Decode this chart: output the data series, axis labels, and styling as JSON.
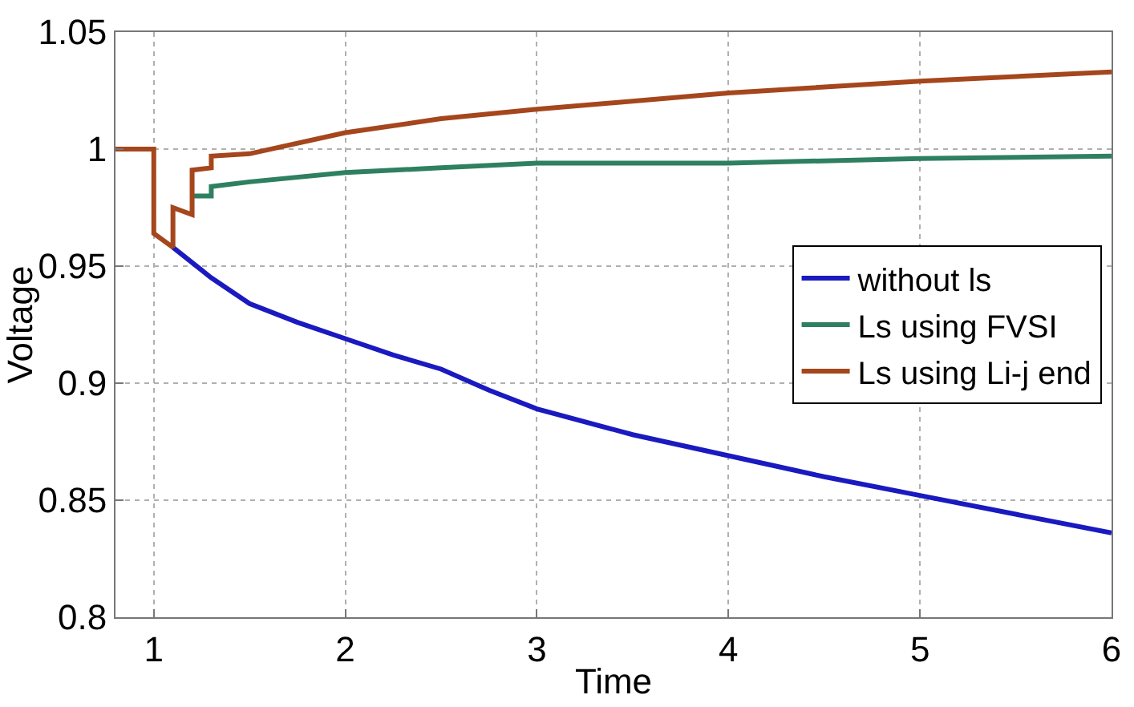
{
  "chart_data": {
    "type": "line",
    "xlabel": "Time",
    "ylabel": "Voltage",
    "xlim": [
      0.8,
      6
    ],
    "xticks": [
      1,
      2,
      3,
      4,
      5,
      6
    ],
    "ylim": [
      0.8,
      1.05
    ],
    "yticks": [
      0.8,
      0.85,
      0.9,
      0.95,
      1,
      1.05
    ],
    "grid": true,
    "legend": "right",
    "line_style": "solid",
    "marker": "none",
    "series": [
      {
        "name": "without ls",
        "color": "#1a1ac0",
        "x": [
          1.1,
          1.3,
          1.5,
          1.75,
          2,
          2.25,
          2.5,
          2.75,
          3,
          3.5,
          4,
          4.5,
          5,
          5.5,
          6
        ],
        "values": [
          0.958,
          0.945,
          0.934,
          0.926,
          0.919,
          0.912,
          0.906,
          0.897,
          0.889,
          0.878,
          0.869,
          0.86,
          0.852,
          0.844,
          0.836
        ]
      },
      {
        "name": "Ls using FVSI",
        "color": "#2e8060",
        "x": [
          1.2,
          1.3,
          1.3,
          1.5,
          2,
          2.5,
          3,
          4,
          5,
          6
        ],
        "values": [
          0.98,
          0.98,
          0.984,
          0.986,
          0.99,
          0.992,
          0.994,
          0.994,
          0.996,
          0.997
        ]
      },
      {
        "name": "Ls using Li-j end",
        "color": "#a5461c",
        "x": [
          0.8,
          1,
          1,
          1.1,
          1.1,
          1.2,
          1.2,
          1.3,
          1.3,
          1.5,
          2,
          2.5,
          3,
          4,
          5,
          6
        ],
        "values": [
          1,
          1,
          0.964,
          0.958,
          0.975,
          0.972,
          0.991,
          0.992,
          0.997,
          0.998,
          1.007,
          1.013,
          1.017,
          1.024,
          1.029,
          1.033
        ]
      }
    ]
  }
}
